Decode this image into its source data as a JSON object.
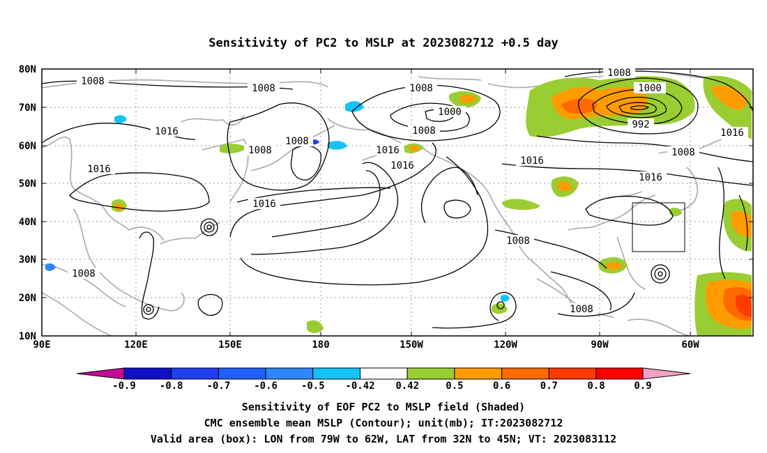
{
  "title": "Sensitivity of PC2 to MSLP at 2023082712 +0.5 day",
  "lat_labels": [
    "80N",
    "70N",
    "60N",
    "50N",
    "40N",
    "30N",
    "20N",
    "10N"
  ],
  "lon_labels": [
    "90E",
    "120E",
    "150E",
    "180",
    "150W",
    "120W",
    "90W",
    "60W"
  ],
  "contour_labels": [
    "1008",
    "1008",
    "1008",
    "1008",
    "1008",
    "1008",
    "1008",
    "1008",
    "1008",
    "1008",
    "1008",
    "1000",
    "1000",
    "992",
    "1016",
    "1016",
    "1016",
    "1016",
    "1016",
    "1016",
    "1016",
    "1016"
  ],
  "colorbar": {
    "tick_labels": [
      "-0.9",
      "-0.8",
      "-0.7",
      "-0.6",
      "-0.5",
      "-0.42",
      "0.42",
      "0.5",
      "0.6",
      "0.7",
      "0.8",
      "0.9"
    ],
    "colors": [
      "#c20c95",
      "#1010c8",
      "#1f3ff0",
      "#2060ff",
      "#2f86ff",
      "#14c4f8",
      "#ffffff",
      "#9acd32",
      "#ff9c00",
      "#ff6a00",
      "#ff3a00",
      "#ff0000",
      "#f5a0c8"
    ]
  },
  "captions": [
    "Sensitivity of EOF PC2 to MSLP field (Shaded)",
    "CMC ensemble mean MSLP (Contour); unit(mb); IT:2023082712",
    "Valid area (box): LON from 79W to 62W, LAT from 32N to 45N; VT: 2023083112"
  ],
  "valid_box": {
    "lon_min": -79,
    "lon_max": -62,
    "lat_min": 32,
    "lat_max": 45
  }
}
